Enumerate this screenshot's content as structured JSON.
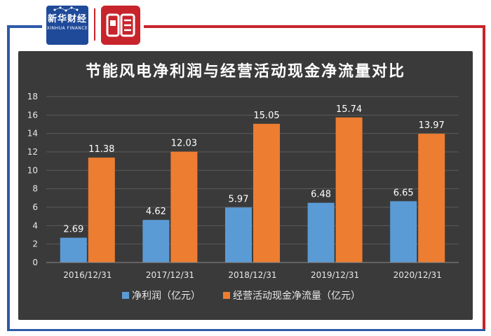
{
  "brand": {
    "xinhua_logo": "新华财经",
    "xinhua_logo_sub": "XINHUA FINANCE"
  },
  "colors": {
    "series_net_profit": "#5b9bd5",
    "series_cash_flow": "#ed7d31",
    "panel_bg": "#3a3a3a",
    "frame_blue": "#2e5aa8",
    "frame_red": "#c8242b"
  },
  "chart_data": {
    "type": "bar",
    "title": "节能风电净利润与经营活动现金净流量对比",
    "categories": [
      "2016/12/31",
      "2017/12/31",
      "2018/12/31",
      "2019/12/31",
      "2020/12/31"
    ],
    "series": [
      {
        "name": "净利润（亿元）",
        "values": [
          2.69,
          4.62,
          5.97,
          6.48,
          6.65
        ],
        "labels": [
          "2.69",
          "4.62",
          "5.97",
          "6.48",
          "6.65"
        ]
      },
      {
        "name": "经营活动现金净流量（亿元）",
        "values": [
          11.38,
          12.03,
          15.05,
          15.74,
          13.97
        ],
        "labels": [
          "11.38",
          "12.03",
          "15.05",
          "15.74",
          "13.97"
        ]
      }
    ],
    "ylim": [
      0,
      18
    ],
    "yticks": [
      0,
      2,
      4,
      6,
      8,
      10,
      12,
      14,
      16,
      18
    ],
    "xlabel": "",
    "ylabel": "",
    "grid": true,
    "legend": "bottom"
  }
}
